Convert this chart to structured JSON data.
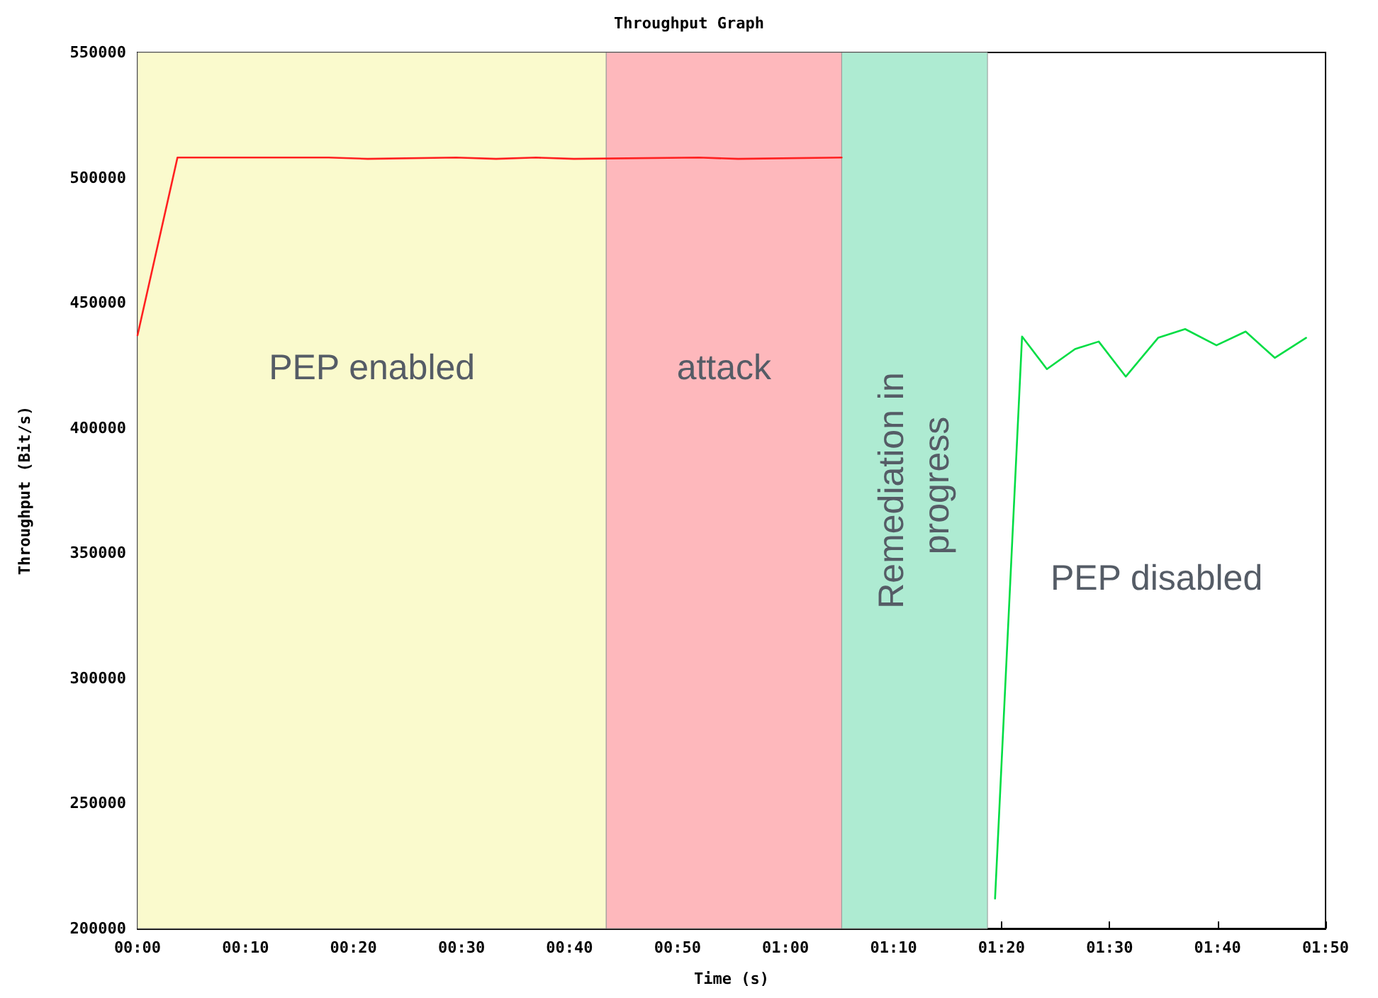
{
  "chart_data": {
    "type": "line",
    "title": "Throughput Graph",
    "xlabel": "Time (s)",
    "ylabel": "Throughput (Bit/s)",
    "series": [
      {
        "color": "#ff2020",
        "x": [
          0,
          3.7,
          17.7,
          21.3,
          29.5,
          33.2,
          36.9,
          40.4,
          52.0,
          55.6,
          65.2
        ],
        "values": [
          437000,
          508000,
          508000,
          507500,
          508000,
          507500,
          508000,
          507500,
          508000,
          507500,
          508000
        ]
      },
      {
        "color": "#00dd44",
        "x": [
          79.4,
          81.9,
          84.2,
          86.8,
          89.0,
          91.5,
          94.5,
          97.0,
          99.9,
          102.6,
          105.3,
          108.2
        ],
        "values": [
          212000,
          436500,
          423500,
          431500,
          434500,
          420500,
          436000,
          439500,
          433000,
          438500,
          428000,
          436000
        ]
      }
    ],
    "bands": [
      {
        "axis": "x",
        "from": 0,
        "to": 43.4,
        "label": "PEP enabled",
        "color": "#fafacd"
      },
      {
        "axis": "x",
        "from": 43.4,
        "to": 65.2,
        "label": "attack",
        "color": "#feb8bc"
      },
      {
        "axis": "x",
        "from": 65.2,
        "to": 78.7,
        "label": "Remediation in progress",
        "color": "#aeebd2"
      }
    ],
    "annotations": [
      "PEP disabled"
    ],
    "xlim": [
      0,
      110
    ],
    "xticks": [
      {
        "value": 0,
        "label": "00:00"
      },
      {
        "value": 10,
        "label": "00:10"
      },
      {
        "value": 20,
        "label": "00:20"
      },
      {
        "value": 30,
        "label": "00:30"
      },
      {
        "value": 40,
        "label": "00:40"
      },
      {
        "value": 50,
        "label": "00:50"
      },
      {
        "value": 60,
        "label": "01:00"
      },
      {
        "value": 70,
        "label": "01:10"
      },
      {
        "value": 80,
        "label": "01:20"
      },
      {
        "value": 90,
        "label": "01:30"
      },
      {
        "value": 100,
        "label": "01:40"
      },
      {
        "value": 110,
        "label": "01:50"
      }
    ],
    "ylim": [
      200000,
      550000
    ],
    "yticks": [
      200000,
      250000,
      300000,
      350000,
      400000,
      450000,
      500000,
      550000
    ],
    "grid": false,
    "marker": "none",
    "line_style": "solid"
  }
}
